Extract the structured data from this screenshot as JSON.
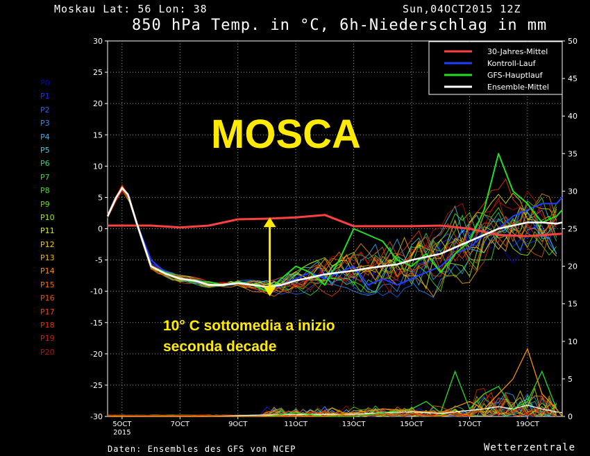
{
  "header": {
    "station": "Moskau  Lat: 56 Lon: 38",
    "date": "Sun,04OCT2015 12Z",
    "title": "850 hPa Temp. in °C, 6h-Niederschlag in mm"
  },
  "members": [
    "P0",
    "P1",
    "P2",
    "P3",
    "P4",
    "P5",
    "P6",
    "P7",
    "P8",
    "P9",
    "P10",
    "P11",
    "P12",
    "P13",
    "P14",
    "P15",
    "P16",
    "P17",
    "P18",
    "P19",
    "P20"
  ],
  "member_colors": [
    "#0000d0",
    "#1030ff",
    "#2060ff",
    "#2090ff",
    "#30b0ff",
    "#40d0e0",
    "#30d080",
    "#30e050",
    "#40e020",
    "#60e000",
    "#a0f000",
    "#e0f000",
    "#f0d000",
    "#f0b000",
    "#f09000",
    "#f07000",
    "#f05000",
    "#f04000",
    "#e03000",
    "#d02000",
    "#c01000"
  ],
  "annotations": {
    "overlay_title": "MOSCA",
    "note_line1": "10° C sottomedia a inizio",
    "note_line2": "seconda decade"
  },
  "footer": {
    "source": "Daten: Ensembles des GFS von NCEP",
    "brand": "Wetterzentrale"
  },
  "chart_data": {
    "type": "line",
    "x": [
      "5OCT",
      "7OCT",
      "9OCT",
      "11OCT",
      "13OCT",
      "15OCT",
      "17OCT",
      "19OCT"
    ],
    "x_sublabel": "2015",
    "y_left_label_unit": "°C",
    "ylim_left": [
      -30,
      30
    ],
    "y_left_ticks": [
      30,
      25,
      20,
      15,
      10,
      5,
      0,
      -5,
      -10,
      -15,
      -20,
      -25,
      -30
    ],
    "ylim_right": [
      0,
      50
    ],
    "y_right_ticks": [
      50,
      45,
      40,
      35,
      30,
      25,
      20,
      15,
      10,
      5,
      0
    ],
    "grid": true,
    "legend_position": "top-right",
    "series": [
      {
        "name": "30-Jahres-Mittel",
        "color": "#ff4040",
        "x": [
          4.5,
          5,
          6,
          7,
          8,
          9,
          10,
          11,
          12,
          13,
          14,
          15,
          16,
          17,
          18,
          19,
          20.2
        ],
        "values": [
          0.5,
          0.5,
          0.5,
          0.2,
          0.5,
          1.5,
          1.6,
          1.8,
          2.2,
          0.4,
          0.4,
          0.4,
          0.5,
          0,
          -1,
          -1.2,
          -0.8
        ]
      },
      {
        "name": "Kontroll-Lauf",
        "color": "#2040ff",
        "x": [
          4.5,
          4.8,
          5,
          5.2,
          5.5,
          6,
          6.5,
          7,
          7.5,
          8,
          8.5,
          9,
          9.5,
          10,
          10.5,
          11,
          11.5,
          12,
          12.5,
          13,
          13.5,
          14,
          14.5,
          15,
          15.5,
          16,
          16.5,
          17,
          17.5,
          18,
          18.5,
          19,
          19.5,
          20,
          20.2
        ],
        "values": [
          2,
          5,
          6.5,
          5.5,
          1,
          -5,
          -7,
          -8,
          -8.5,
          -9,
          -9,
          -8.5,
          -9,
          -10,
          -9,
          -8,
          -7,
          -8,
          -7,
          -6,
          -9,
          -8,
          -9,
          -8,
          -7,
          -6,
          -4,
          -3,
          -1,
          0,
          2,
          3,
          4,
          4,
          5
        ]
      },
      {
        "name": "GFS-Hauptlauf",
        "color": "#20e020",
        "x": [
          4.5,
          4.8,
          5,
          5.2,
          5.5,
          6,
          6.5,
          7,
          7.5,
          8,
          8.5,
          9,
          9.5,
          10,
          10.5,
          11,
          11.5,
          12,
          12.5,
          13,
          13.5,
          14,
          14.5,
          15,
          15.5,
          16,
          16.5,
          17,
          17.5,
          18,
          18.5,
          19,
          19.5,
          20,
          20.2
        ],
        "values": [
          2,
          5,
          6.5,
          5.5,
          1,
          -6,
          -7,
          -8,
          -8.5,
          -8.5,
          -9,
          -8.5,
          -9,
          -10,
          -8,
          -6,
          -7,
          -9,
          -5,
          0,
          -1,
          -2,
          -5,
          -6,
          -4,
          -7,
          -4,
          -2,
          3,
          12,
          6,
          4,
          1,
          2,
          3
        ]
      },
      {
        "name": "Ensemble-Mittel",
        "color": "#ffffff",
        "x": [
          4.5,
          4.8,
          5,
          5.2,
          5.5,
          6,
          6.5,
          7,
          7.5,
          8,
          8.5,
          9,
          9.5,
          10,
          10.5,
          11,
          11.5,
          12,
          12.5,
          13,
          13.5,
          14,
          14.5,
          15,
          15.5,
          16,
          16.5,
          17,
          17.5,
          18,
          18.5,
          19,
          19.5,
          20,
          20.2
        ],
        "values": [
          2,
          5,
          6.5,
          5.5,
          1,
          -6,
          -7.2,
          -8,
          -8.3,
          -9,
          -9,
          -8.7,
          -9,
          -9.3,
          -9,
          -8.3,
          -7.8,
          -7.3,
          -7,
          -6.7,
          -6.3,
          -6,
          -5.7,
          -5,
          -4.5,
          -4,
          -3,
          -2,
          -1,
          0,
          0.5,
          1,
          1,
          0.8,
          1
        ]
      }
    ],
    "precip_series": [
      {
        "name": "Ensemble-Mittel",
        "color": "#ffffff",
        "x": [
          4.5,
          8,
          10,
          12,
          13,
          14,
          15,
          16,
          17,
          17.5,
          18,
          18.5,
          19,
          19.5,
          20,
          20.2
        ],
        "values": [
          0,
          0,
          0.2,
          0.3,
          0.3,
          0.5,
          0.6,
          0.4,
          0.8,
          1,
          1.3,
          1,
          1.5,
          1,
          0.6,
          0.5
        ]
      },
      {
        "name": "GFS-Hauptlauf",
        "color": "#20e020",
        "x": [
          4.5,
          10,
          11,
          12,
          13,
          14,
          15,
          15.5,
          16,
          16.5,
          17,
          17.5,
          18,
          18.5,
          19,
          19.5,
          20,
          20.2
        ],
        "values": [
          0,
          0,
          0.5,
          0,
          0,
          0.5,
          1,
          2,
          0.5,
          6,
          1,
          3,
          4,
          1,
          2,
          6,
          1,
          0
        ]
      },
      {
        "name": "P14",
        "color": "#f09000",
        "x": [
          4.5,
          12,
          14,
          16,
          17,
          17.5,
          18,
          18.5,
          19,
          19.5,
          20,
          20.2
        ],
        "values": [
          0,
          0,
          1,
          0.5,
          2,
          1,
          3,
          5,
          9,
          3,
          1,
          0
        ]
      }
    ]
  }
}
